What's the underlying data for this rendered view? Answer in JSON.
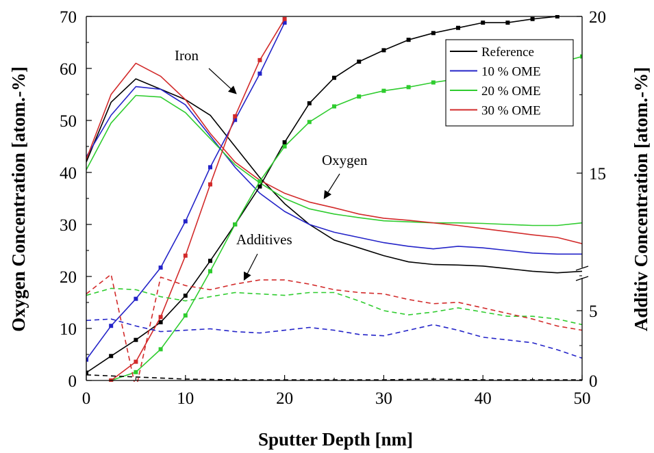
{
  "chart_data": {
    "type": "line",
    "xlabel": "Sputter Depth [nm]",
    "ylabel": "Oxygen Concentration [atom.-%]",
    "y2label": "Additiv Concentration [atom.-%]",
    "xlim": [
      0,
      50
    ],
    "ylim": [
      0,
      70
    ],
    "y2_ticks": [
      "0",
      "5",
      "15",
      "20"
    ],
    "x_ticks": [
      "0",
      "10",
      "20",
      "30",
      "40",
      "50"
    ],
    "y_ticks": [
      "0",
      "10",
      "20",
      "30",
      "40",
      "50",
      "60",
      "70"
    ],
    "axis_break": "right axis broken between 7.5 and 12.5 atom.-%",
    "legend": {
      "position": "top-right",
      "entries": [
        "Reference",
        "10 % OME",
        "20 % OME",
        "30 % OME"
      ]
    },
    "colors": {
      "Reference": "#000000",
      "10 % OME": "#2323c8",
      "20 % OME": "#2ecc2e",
      "30 % OME": "#d22a2a"
    },
    "annotations": [
      "Iron",
      "Oxygen",
      "Additives"
    ],
    "series": [
      {
        "name": "Reference",
        "group": "Oxygen",
        "style": "solid",
        "x": [
          0,
          2.5,
          5,
          7.5,
          10,
          12.5,
          15,
          17.5,
          20,
          22.5,
          25,
          27.5,
          30,
          32.5,
          35,
          37.5,
          40,
          42.5,
          45,
          47.5,
          50
        ],
        "y": [
          42,
          53.5,
          58,
          56,
          54,
          51,
          45,
          39,
          34,
          30,
          27,
          25.5,
          24,
          22.8,
          22.3,
          22.2,
          22,
          21.5,
          21,
          20.7,
          21
        ]
      },
      {
        "name": "10 % OME",
        "group": "Oxygen",
        "style": "solid",
        "x": [
          0,
          2.5,
          5,
          7.5,
          10,
          12.5,
          15,
          17.5,
          20,
          22.5,
          25,
          27.5,
          30,
          32.5,
          35,
          37.5,
          40,
          42.5,
          45,
          47.5,
          50
        ],
        "y": [
          43,
          51,
          56.5,
          56,
          53,
          47,
          41,
          36,
          32.5,
          30,
          28.5,
          27.5,
          26.5,
          25.8,
          25.3,
          25.8,
          25.5,
          25,
          24.5,
          24.3,
          24.3
        ]
      },
      {
        "name": "20 % OME",
        "group": "Oxygen",
        "style": "solid",
        "x": [
          0,
          2.5,
          5,
          7.5,
          10,
          12.5,
          15,
          17.5,
          20,
          22.5,
          25,
          27.5,
          30,
          32.5,
          35,
          37.5,
          40,
          42.5,
          45,
          47.5,
          50
        ],
        "y": [
          40.5,
          49.5,
          54.8,
          54.5,
          51.5,
          46.5,
          41.5,
          38,
          35,
          33,
          32,
          31.3,
          30.7,
          30.5,
          30.3,
          30.3,
          30.2,
          30,
          29.8,
          29.8,
          30.3
        ]
      },
      {
        "name": "30 % OME",
        "group": "Oxygen",
        "style": "solid",
        "x": [
          0,
          2.5,
          5,
          7.5,
          10,
          12.5,
          15,
          17.5,
          20,
          22.5,
          25,
          27.5,
          30,
          32.5,
          35,
          37.5,
          40,
          42.5,
          45,
          47.5,
          50
        ],
        "y": [
          42.5,
          55,
          61,
          58.5,
          54,
          47.5,
          42,
          38.5,
          36,
          34.3,
          33.2,
          32,
          31.2,
          30.8,
          30.3,
          29.8,
          29.2,
          28.6,
          28,
          27.5,
          26.3
        ]
      },
      {
        "name": "Reference",
        "group": "Iron",
        "style": "markers",
        "x": [
          0,
          2.5,
          5,
          7.5,
          10,
          12.5,
          15,
          17.5,
          20,
          22.5,
          25,
          27.5,
          30,
          32.5,
          35,
          37.5,
          40,
          42.5,
          45,
          47.5
        ],
        "y": [
          1.5,
          4.7,
          7.8,
          11.2,
          16.3,
          23,
          30,
          37.3,
          45.8,
          53.3,
          58.2,
          61.3,
          63.5,
          65.5,
          66.8,
          67.8,
          68.8,
          68.8,
          69.5,
          70
        ]
      },
      {
        "name": "10 % OME",
        "group": "Iron",
        "style": "markers",
        "x": [
          0,
          2.5,
          5,
          7.5,
          10,
          12.5,
          15,
          17.5,
          20
        ],
        "y": [
          4,
          10.5,
          15.7,
          21.7,
          30.6,
          41,
          50.1,
          59,
          68.8
        ]
      },
      {
        "name": "20 % OME",
        "group": "Iron",
        "style": "markers",
        "x": [
          2.5,
          5,
          7.5,
          10,
          12.5,
          15,
          17.5,
          20,
          22.5,
          25,
          27.5,
          30,
          32.5,
          35,
          37.5,
          40,
          42.5,
          45,
          47.5,
          50
        ],
        "y": [
          0,
          1.6,
          6,
          12.5,
          21,
          30,
          38.3,
          45,
          49.7,
          52.7,
          54.6,
          55.7,
          56.4,
          57.3,
          58,
          58.5,
          59.3,
          60,
          61,
          62.3
        ]
      },
      {
        "name": "30 % OME",
        "group": "Iron",
        "style": "markers",
        "x": [
          2.5,
          5,
          7.5,
          10,
          12.5,
          15,
          17.5,
          20
        ],
        "y": [
          0,
          3.6,
          12.2,
          24,
          37.7,
          50.8,
          61.6,
          69.5
        ]
      },
      {
        "name": "Reference",
        "group": "Additives",
        "style": "dashed",
        "axis": "right",
        "x": [
          0,
          5,
          10,
          15,
          20,
          25,
          30,
          35,
          40,
          45,
          50
        ],
        "y": [
          0.4,
          0.25,
          0.1,
          0.05,
          0.05,
          0.05,
          0.05,
          0.1,
          0.05,
          0.05,
          0.05
        ]
      },
      {
        "name": "10 % OME",
        "group": "Additives",
        "style": "dashed",
        "axis": "right",
        "x": [
          0,
          2.5,
          5,
          7.5,
          10,
          12.5,
          15,
          17.5,
          20,
          22.5,
          25,
          27.5,
          30,
          32.5,
          35,
          37.5,
          40,
          42.5,
          45,
          47.5,
          50
        ],
        "y": [
          4.3,
          4.4,
          3.9,
          3.5,
          3.6,
          3.7,
          3.5,
          3.4,
          3.6,
          3.8,
          3.6,
          3.3,
          3.2,
          3.6,
          4.0,
          3.6,
          3.1,
          2.9,
          2.7,
          2.2,
          1.6
        ]
      },
      {
        "name": "20 % OME",
        "group": "Additives",
        "style": "dashed",
        "axis": "right",
        "x": [
          0,
          2.5,
          5,
          7.5,
          10,
          12.5,
          15,
          17.5,
          20,
          22.5,
          25,
          27.5,
          30,
          32.5,
          35,
          37.5,
          40,
          42.5,
          45,
          47.5,
          50
        ],
        "y": [
          6.1,
          6.6,
          6.5,
          6.0,
          5.7,
          6.0,
          6.3,
          6.2,
          6.1,
          6.3,
          6.3,
          5.7,
          5.0,
          4.7,
          4.9,
          5.2,
          4.9,
          4.6,
          4.6,
          4.4,
          4.0
        ]
      },
      {
        "name": "30 % OME",
        "group": "Additives",
        "style": "dashed",
        "axis": "right",
        "x": [
          0,
          2.5,
          5,
          7.5,
          10,
          12.5,
          15,
          17.5,
          20,
          22.5,
          25,
          27.5,
          30,
          32.5,
          35,
          37.5,
          40,
          42.5,
          45,
          47.5,
          50
        ],
        "y": [
          6.2,
          7.6,
          8.1,
          7.4,
          6.8,
          6.5,
          6.9,
          7.2,
          7.2,
          6.9,
          6.5,
          6.3,
          6.2,
          5.8,
          5.5,
          5.6,
          5.2,
          4.8,
          4.4,
          3.9,
          3.6
        ]
      }
    ]
  }
}
